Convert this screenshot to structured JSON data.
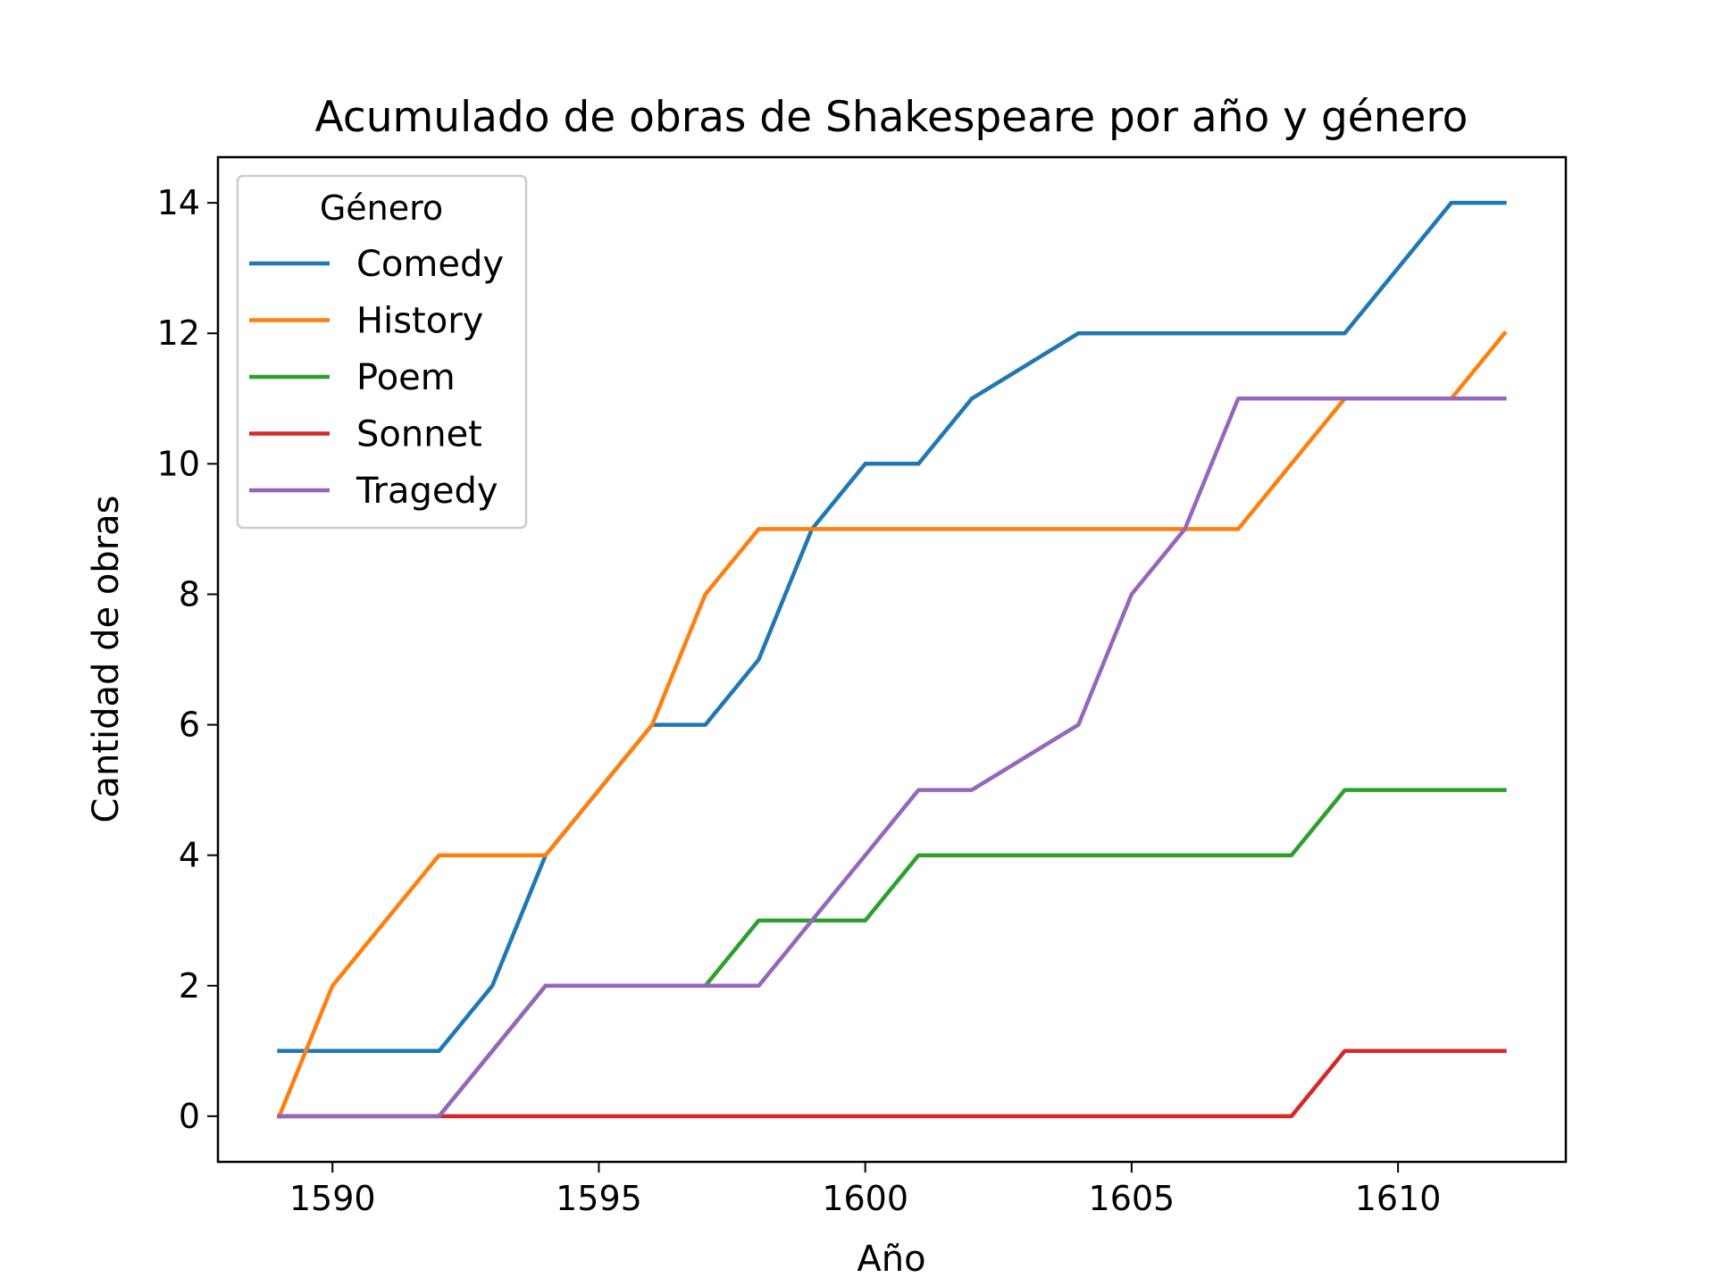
{
  "chart_data": {
    "type": "line",
    "title": "Acumulado de obras de Shakespeare por año y género",
    "xlabel": "Año",
    "ylabel": "Cantidad de obras",
    "xlim": [
      1587.85,
      1613.15
    ],
    "ylim": [
      -0.7,
      14.7
    ],
    "xticks": [
      1590,
      1595,
      1600,
      1605,
      1610
    ],
    "yticks": [
      0,
      2,
      4,
      6,
      8,
      10,
      12,
      14
    ],
    "grid": false,
    "legend": {
      "title": "Género",
      "placement": "top-left"
    },
    "x": [
      1589,
      1590,
      1591,
      1592,
      1593,
      1594,
      1595,
      1596,
      1597,
      1598,
      1599,
      1600,
      1601,
      1602,
      1603,
      1604,
      1605,
      1606,
      1607,
      1608,
      1609,
      1610,
      1611,
      1612
    ],
    "series": [
      {
        "name": "Comedy",
        "color": "#1f77b4",
        "values": [
          1,
          1,
          1,
          1,
          2,
          4,
          5,
          6,
          6,
          7,
          9,
          10,
          10,
          11,
          11.5,
          12,
          12,
          12,
          12,
          12,
          12,
          13,
          14,
          14
        ]
      },
      {
        "name": "History",
        "color": "#ff7f0e",
        "values": [
          0,
          2,
          3,
          4,
          4,
          4,
          5,
          6,
          8,
          9,
          9,
          9,
          9,
          9,
          9,
          9,
          9,
          9,
          9,
          10,
          11,
          11,
          11,
          12
        ]
      },
      {
        "name": "Poem",
        "color": "#2ca02c",
        "values": [
          0,
          0,
          0,
          0,
          1,
          2,
          2,
          2,
          2,
          3,
          3,
          3,
          4,
          4,
          4,
          4,
          4,
          4,
          4,
          4,
          5,
          5,
          5,
          5
        ]
      },
      {
        "name": "Sonnet",
        "color": "#d62728",
        "values": [
          0,
          0,
          0,
          0,
          0,
          0,
          0,
          0,
          0,
          0,
          0,
          0,
          0,
          0,
          0,
          0,
          0,
          0,
          0,
          0,
          1,
          1,
          1,
          1
        ]
      },
      {
        "name": "Tragedy",
        "color": "#9467bd",
        "values": [
          0,
          0,
          0,
          0,
          1,
          2,
          2,
          2,
          2,
          2,
          3,
          4,
          5,
          5,
          5.5,
          6,
          8,
          9,
          11,
          11,
          11,
          11,
          11,
          11
        ]
      }
    ]
  }
}
